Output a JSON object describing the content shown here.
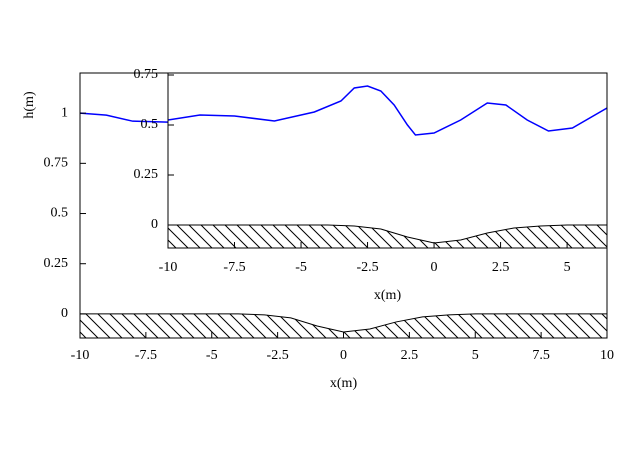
{
  "chart_data": [
    {
      "type": "line",
      "x_label": "x(m)",
      "y_label": "h(m)",
      "x": [
        -10,
        -9,
        -8,
        -6.66
      ],
      "series": [
        {
          "color": "#0000ff",
          "values": [
            1.0,
            0.99,
            0.96,
            0.955
          ]
        }
      ],
      "bed": {
        "x": [
          -10,
          -4,
          -3,
          -2,
          -1,
          0,
          1,
          2,
          3,
          4,
          5,
          10
        ],
        "values": [
          0,
          0,
          -0.005,
          -0.02,
          -0.06,
          -0.09,
          -0.075,
          -0.04,
          -0.015,
          -0.005,
          0,
          0
        ]
      },
      "xlim": [
        -10,
        10
      ],
      "ylim": [
        -0.12,
        1.2
      ],
      "xticks": [
        -10,
        -7.5,
        -5,
        -2.5,
        0,
        2.5,
        5,
        7.5,
        10
      ],
      "yticks": [
        0,
        0.25,
        0.5,
        0.75,
        1
      ]
    },
    {
      "type": "line",
      "x_label": "x(m)",
      "x": [
        -10,
        -8.8,
        -7.5,
        -6,
        -4.5,
        -3.5,
        -3,
        -2.5,
        -2,
        -1.5,
        -1,
        -0.7,
        0,
        1,
        2,
        2.7,
        3.5,
        4.3,
        5.2,
        6.5
      ],
      "series": [
        {
          "color": "#0000ff",
          "values": [
            0.525,
            0.55,
            0.545,
            0.52,
            0.565,
            0.62,
            0.685,
            0.695,
            0.67,
            0.6,
            0.5,
            0.45,
            0.46,
            0.525,
            0.61,
            0.6,
            0.525,
            0.47,
            0.485,
            0.585
          ]
        }
      ],
      "bed": {
        "x": [
          -10,
          -4,
          -3,
          -2,
          -1,
          0,
          1,
          2,
          3,
          4,
          5,
          6.5
        ],
        "values": [
          0,
          0,
          -0.005,
          -0.02,
          -0.06,
          -0.09,
          -0.075,
          -0.04,
          -0.015,
          -0.005,
          0,
          0
        ]
      },
      "xlim": [
        -10,
        6.5
      ],
      "ylim": [
        -0.115,
        0.76
      ],
      "xticks": [
        -10,
        -7.5,
        -5,
        -2.5,
        0,
        2.5,
        5
      ],
      "yticks": [
        0,
        0.25,
        0.5,
        0.75
      ]
    }
  ]
}
